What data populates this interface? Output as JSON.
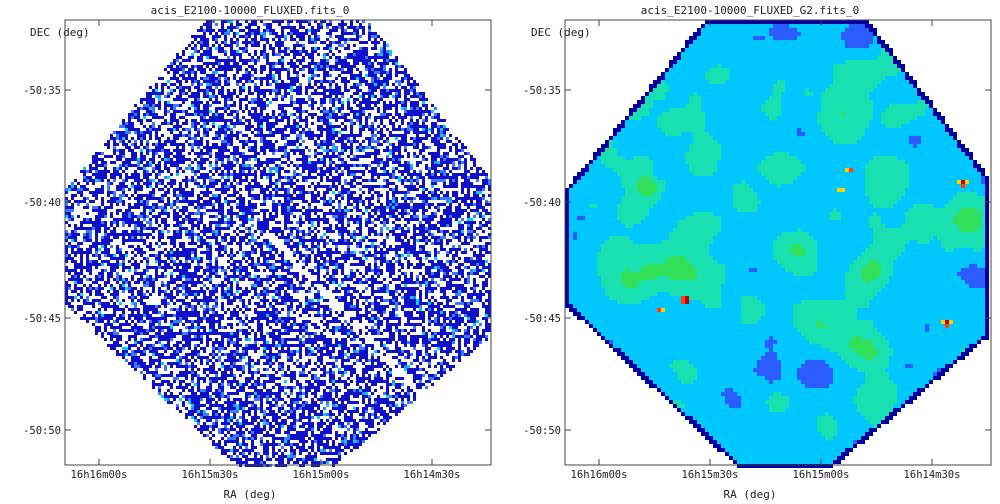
{
  "chart_data": [
    {
      "type": "heatmap",
      "title": "acis_E2100-10000_FLUXED.fits_0",
      "xlabel": "RA (deg)",
      "ylabel": "DEC (deg)",
      "x_ticks": [
        "16h16m00s",
        "16h15m30s",
        "16h15m00s",
        "16h14m30s"
      ],
      "y_ticks": [
        "-50:35",
        "-50:40",
        "-50:45",
        "-50:50"
      ],
      "grid": false,
      "colormap": [
        "#ffffff",
        "#1010c8",
        "#3a7bff",
        "#00cfff"
      ],
      "style": "sparse-counts"
    },
    {
      "type": "heatmap",
      "title": "acis_E2100-10000_FLUXED_G2.fits_0",
      "xlabel": "RA (deg)",
      "ylabel": "DEC (deg)",
      "x_ticks": [
        "16h16m00s",
        "16h15m30s",
        "16h15m00s",
        "16h14m30s"
      ],
      "y_ticks": [
        "-50:35",
        "-50:40",
        "-50:45",
        "-50:50"
      ],
      "grid": false,
      "colormap": [
        "#0000a0",
        "#2a5cff",
        "#00c8ff",
        "#19e0b0",
        "#33e05a",
        "#c8f000",
        "#ffd000",
        "#ff4000",
        "#c00000"
      ],
      "style": "smoothed"
    }
  ]
}
